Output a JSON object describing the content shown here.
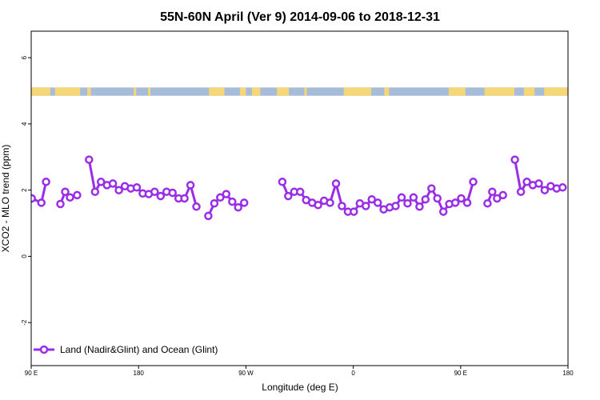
{
  "chart_data": {
    "type": "line",
    "title": "55N-60N April (Ver 9)   2014-09-06 to 2018-12-31",
    "xlabel": "Longitude (deg E)",
    "ylabel": "XCO2 - MLO trend (ppm)",
    "xlim": [
      90,
      540
    ],
    "ylim": [
      -3.3,
      6.8
    ],
    "x_ticks": [
      {
        "value": 90,
        "label": "90 E"
      },
      {
        "value": 180,
        "label": "180"
      },
      {
        "value": 270,
        "label": "90 W"
      },
      {
        "value": 360,
        "label": "0"
      },
      {
        "value": 450,
        "label": "90 E"
      },
      {
        "value": 540,
        "label": "180"
      }
    ],
    "y_ticks": [
      {
        "value": -2,
        "label": "-2"
      },
      {
        "value": 0,
        "label": "0"
      },
      {
        "value": 2,
        "label": "2"
      },
      {
        "value": 4,
        "label": "4"
      },
      {
        "value": 6,
        "label": "6"
      }
    ],
    "land_mask_band": {
      "y_bottom": 4.85,
      "y_top": 5.1,
      "ocean_color": "#a7bcd8",
      "land_color": "#f5d77a"
    },
    "series": [
      {
        "name": "Land (Nadir&Glint) and Ocean (Glint)",
        "color": "#9a2ee6",
        "segments": [
          [
            [
              90.5,
              1.75
            ],
            [
              98.5,
              1.62
            ],
            [
              102.5,
              2.25
            ]
          ],
          [
            [
              114.5,
              1.58
            ],
            [
              118.5,
              1.95
            ],
            [
              122.5,
              1.78
            ],
            [
              128.5,
              1.85
            ]
          ],
          [
            [
              138.5,
              2.92
            ],
            [
              143.5,
              1.95
            ],
            [
              148.5,
              2.25
            ],
            [
              153.5,
              2.15
            ],
            [
              158.5,
              2.2
            ],
            [
              163.5,
              2.0
            ],
            [
              168.5,
              2.12
            ],
            [
              173.5,
              2.05
            ],
            [
              178.5,
              2.08
            ],
            [
              183.5,
              1.9
            ],
            [
              188.5,
              1.88
            ],
            [
              193.5,
              1.95
            ],
            [
              198.5,
              1.82
            ],
            [
              203.5,
              1.95
            ],
            [
              208.5,
              1.92
            ],
            [
              213.5,
              1.75
            ],
            [
              218.5,
              1.75
            ],
            [
              223.5,
              2.15
            ],
            [
              228.5,
              1.5
            ]
          ],
          [
            [
              238.5,
              1.22
            ],
            [
              243.5,
              1.6
            ],
            [
              248.5,
              1.78
            ],
            [
              253.5,
              1.88
            ],
            [
              258.5,
              1.65
            ],
            [
              263.5,
              1.48
            ],
            [
              268.5,
              1.62
            ]
          ],
          [
            [
              300.5,
              2.25
            ],
            [
              305.5,
              1.82
            ],
            [
              310.5,
              1.95
            ],
            [
              315.5,
              1.95
            ],
            [
              320.5,
              1.7
            ],
            [
              325.5,
              1.62
            ],
            [
              330.5,
              1.55
            ],
            [
              335.5,
              1.68
            ],
            [
              340.5,
              1.62
            ],
            [
              345.5,
              2.2
            ],
            [
              350.5,
              1.52
            ],
            [
              355.5,
              1.35
            ],
            [
              360.5,
              1.35
            ],
            [
              365.5,
              1.6
            ],
            [
              370.5,
              1.52
            ],
            [
              375.5,
              1.72
            ],
            [
              380.5,
              1.62
            ],
            [
              385.5,
              1.42
            ],
            [
              390.5,
              1.48
            ],
            [
              395.5,
              1.52
            ],
            [
              400.5,
              1.78
            ],
            [
              405.5,
              1.6
            ],
            [
              410.5,
              1.78
            ],
            [
              415.5,
              1.5
            ],
            [
              420.5,
              1.72
            ],
            [
              425.5,
              2.05
            ],
            [
              430.5,
              1.75
            ],
            [
              435.5,
              1.35
            ],
            [
              440.5,
              1.58
            ],
            [
              445.5,
              1.62
            ],
            [
              450.5,
              1.75
            ],
            [
              455.5,
              1.62
            ],
            [
              460.5,
              2.25
            ]
          ],
          [
            [
              472.5,
              1.6
            ],
            [
              476.5,
              1.95
            ],
            [
              480.5,
              1.75
            ],
            [
              485.5,
              1.85
            ]
          ],
          [
            [
              495.5,
              2.92
            ],
            [
              500.5,
              1.95
            ],
            [
              505.5,
              2.25
            ],
            [
              510.5,
              2.15
            ],
            [
              515.5,
              2.2
            ],
            [
              520.5,
              2.0
            ],
            [
              525.5,
              2.12
            ],
            [
              530.5,
              2.05
            ],
            [
              535.5,
              2.08
            ]
          ]
        ]
      }
    ],
    "legend": {
      "position": "bottom-left",
      "entries": [
        "Land (Nadir&Glint) and Ocean (Glint)"
      ]
    },
    "grid": false
  }
}
